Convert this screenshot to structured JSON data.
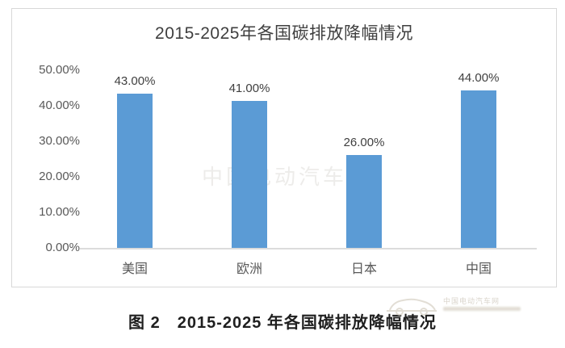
{
  "chart_data": {
    "type": "bar",
    "title": "2015-2025年各国碳排放降幅情况",
    "categories": [
      "美国",
      "欧洲",
      "日本",
      "中国"
    ],
    "values": [
      43,
      41,
      26,
      44
    ],
    "data_labels": [
      "43.00%",
      "41.00%",
      "26.00%",
      "44.00%"
    ],
    "yticks": [
      "50.00%",
      "40.00%",
      "30.00%",
      "20.00%",
      "10.00%",
      "0.00%"
    ],
    "ylim": [
      0,
      50
    ],
    "xlabel": "",
    "ylabel": "",
    "grid": false,
    "legend_position": "none",
    "bar_color": "#5b9bd5",
    "axis_line_color": "#dcdcdc",
    "border_color": "#d8d8d8"
  },
  "caption": "图 2　2015-2025 年各国碳排放降幅情况",
  "watermark": {
    "site_text": "中国电动汽车网"
  }
}
